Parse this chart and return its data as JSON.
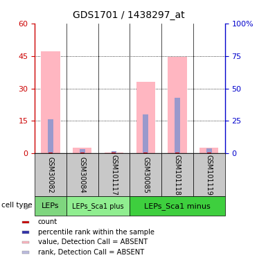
{
  "title": "GDS1701 / 1438297_at",
  "samples": [
    "GSM30082",
    "GSM30084",
    "GSM101117",
    "GSM30085",
    "GSM101118",
    "GSM101119"
  ],
  "pink_bar_values": [
    47.0,
    2.5,
    0.3,
    33.0,
    44.5,
    2.5
  ],
  "blue_rank_values": [
    26.5,
    3.5,
    1.5,
    30.0,
    43.0,
    4.0
  ],
  "red_count_values": [
    0.4,
    0.4,
    0.4,
    0.4,
    0.4,
    0.4
  ],
  "ylim_left": [
    0,
    60
  ],
  "ylim_right": [
    0,
    100
  ],
  "yticks_left": [
    0,
    15,
    30,
    45,
    60
  ],
  "yticks_right": [
    0,
    25,
    50,
    75,
    100
  ],
  "ytick_labels_right": [
    "0",
    "25",
    "50",
    "75",
    "100%"
  ],
  "cell_type_groups": [
    {
      "label": "LEPs",
      "start": 0,
      "end": 1,
      "color": "#7FD67F",
      "fontsize": 8
    },
    {
      "label": "LEPs_Sca1 plus",
      "start": 1,
      "end": 3,
      "color": "#90EE90",
      "fontsize": 7
    },
    {
      "label": "LEPs_Sca1 minus",
      "start": 3,
      "end": 6,
      "color": "#3ECF3E",
      "fontsize": 8
    }
  ],
  "cell_type_label": "cell type",
  "pink_color": "#FFB6C1",
  "blue_color": "#9999CC",
  "red_color": "#CC0000",
  "dark_blue_color": "#3333AA",
  "bar_width": 0.6,
  "left_tick_color": "#CC0000",
  "right_tick_color": "#0000CC",
  "legend_items": [
    {
      "color": "#CC0000",
      "label": "count"
    },
    {
      "color": "#3333AA",
      "label": "percentile rank within the sample"
    },
    {
      "color": "#FFB6C1",
      "label": "value, Detection Call = ABSENT"
    },
    {
      "color": "#BBBBDD",
      "label": "rank, Detection Call = ABSENT"
    }
  ]
}
